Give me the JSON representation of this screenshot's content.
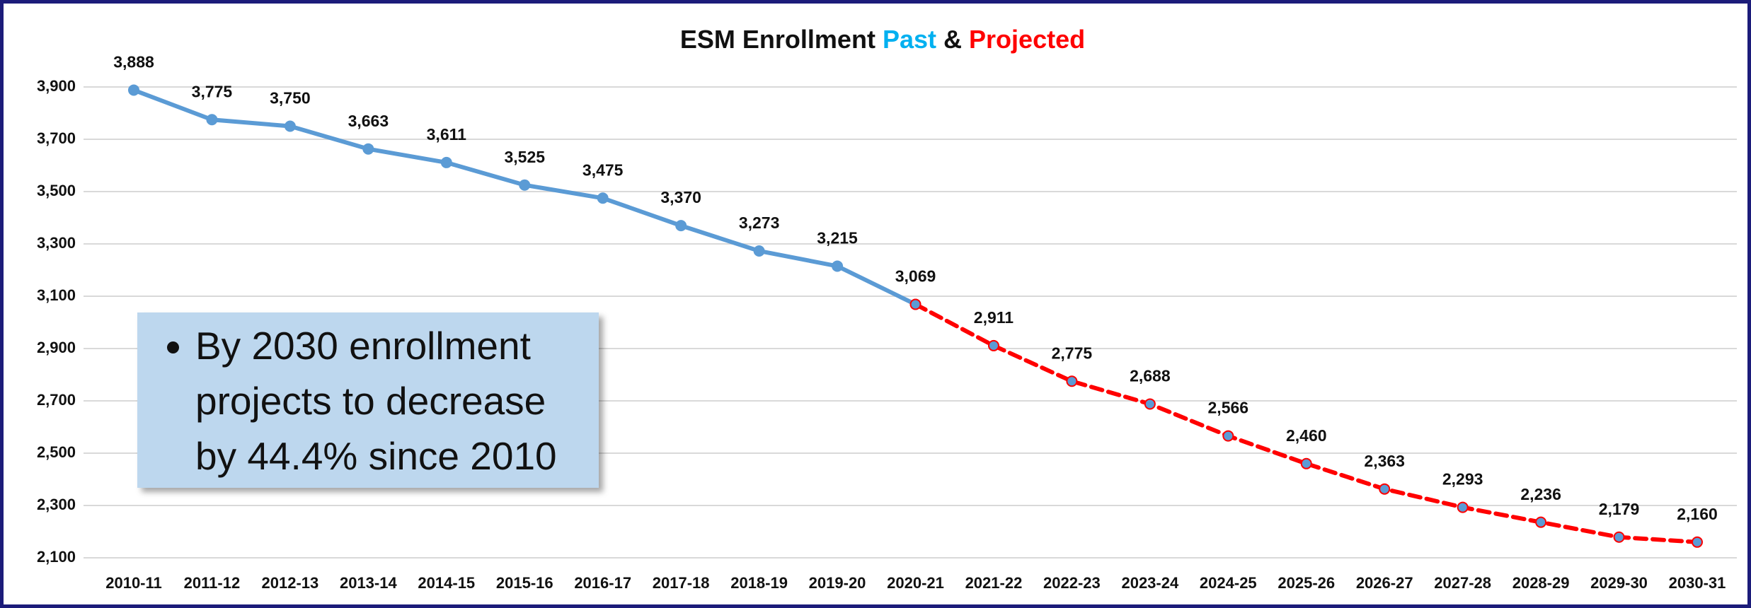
{
  "chart_data": {
    "type": "line",
    "title": "ESM Enrollment",
    "title_joiner": "&",
    "categories": [
      "2010-11",
      "2011-12",
      "2012-13",
      "2013-14",
      "2014-15",
      "2015-16",
      "2016-17",
      "2017-18",
      "2018-19",
      "2019-20",
      "2020-21",
      "2021-22",
      "2022-23",
      "2023-24",
      "2024-25",
      "2025-26",
      "2026-27",
      "2027-28",
      "2028-29",
      "2029-30",
      "2030-31"
    ],
    "series": [
      {
        "name": "Past",
        "color": "#5b9bd5",
        "title_color": "#00b0f0",
        "dashed": false,
        "values": [
          3888,
          3775,
          3750,
          3663,
          3611,
          3525,
          3475,
          3370,
          3273,
          3215,
          3069,
          null,
          null,
          null,
          null,
          null,
          null,
          null,
          null,
          null,
          null
        ],
        "value_labels": [
          "3,888",
          "3,775",
          "3,750",
          "3,663",
          "3,611",
          "3,525",
          "3,475",
          "3,370",
          "3,273",
          "3,215",
          "3,069",
          null,
          null,
          null,
          null,
          null,
          null,
          null,
          null,
          null,
          null
        ]
      },
      {
        "name": "Projected",
        "color": "#ff0000",
        "title_color": "#ff0000",
        "dashed": true,
        "values": [
          null,
          null,
          null,
          null,
          null,
          null,
          null,
          null,
          null,
          null,
          3069,
          2911,
          2775,
          2688,
          2566,
          2460,
          2363,
          2293,
          2236,
          2179,
          2160
        ],
        "value_labels": [
          null,
          null,
          null,
          null,
          null,
          null,
          null,
          null,
          null,
          null,
          null,
          "2,911",
          "2,775",
          "2,688",
          "2,566",
          "2,460",
          "2,363",
          "2,293",
          "2,236",
          "2,179",
          "2,160"
        ]
      }
    ],
    "ylim": [
      2100,
      3900
    ],
    "yticks": [
      {
        "value": 2100,
        "label": "2,100"
      },
      {
        "value": 2300,
        "label": "2,300"
      },
      {
        "value": 2500,
        "label": "2,500"
      },
      {
        "value": 2700,
        "label": "2,700"
      },
      {
        "value": 2900,
        "label": "2,900"
      },
      {
        "value": 3100,
        "label": "3,100"
      },
      {
        "value": 3300,
        "label": "3,300"
      },
      {
        "value": 3500,
        "label": "3,500"
      },
      {
        "value": 3700,
        "label": "3,700"
      },
      {
        "value": 3900,
        "label": "3,900"
      }
    ],
    "grid": true,
    "annotation": "By 2030 enrollment projects to decrease by 44.4% since 2010"
  }
}
